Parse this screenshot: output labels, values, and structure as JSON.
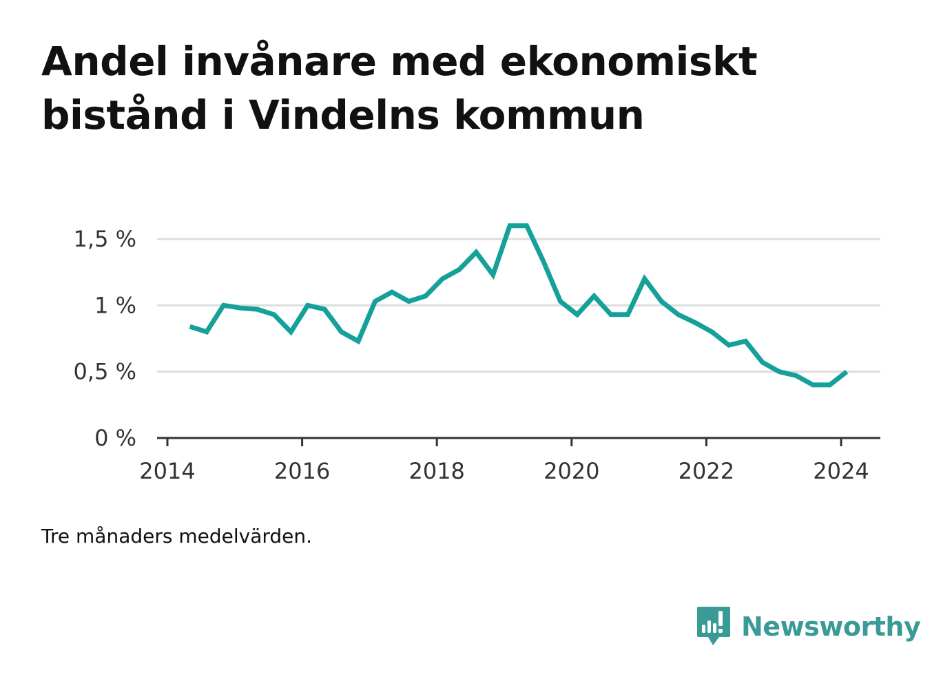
{
  "title": "Andel invånare med ekonomiskt bistånd i Vindelns kommun",
  "note": "Tre månaders medelvärden.",
  "brand": {
    "name": "Newsworthy",
    "icon": "newsworthy-logo-icon",
    "color": "#3a9a96"
  },
  "chart_data": {
    "type": "line",
    "title": "Andel invånare med ekonomiskt bistånd i Vindelns kommun",
    "xlabel": "",
    "ylabel": "",
    "x_ticks": [
      "2014",
      "2016",
      "2018",
      "2020",
      "2022",
      "2024"
    ],
    "y_ticks": [
      "0 %",
      "0,5 %",
      "1 %",
      "1,5 %"
    ],
    "y_tick_values": [
      0,
      0.5,
      1,
      1.5
    ],
    "xlim": [
      2014,
      2024.3
    ],
    "ylim": [
      0,
      1.5
    ],
    "grid": true,
    "line_color": "#16a09a",
    "series": [
      {
        "x": [
          "2014-05",
          "2014-08",
          "2014-11",
          "2015-02",
          "2015-05",
          "2015-08",
          "2015-11",
          "2016-02",
          "2016-05",
          "2016-08",
          "2016-11",
          "2017-02",
          "2017-05",
          "2017-08",
          "2017-11",
          "2018-02",
          "2018-05",
          "2018-08",
          "2018-11",
          "2019-02",
          "2019-05",
          "2019-08",
          "2019-11",
          "2020-02",
          "2020-05",
          "2020-08",
          "2020-11",
          "2021-02",
          "2021-05",
          "2021-08",
          "2021-11",
          "2022-02",
          "2022-05",
          "2022-08",
          "2022-11",
          "2023-02",
          "2023-05",
          "2023-08",
          "2023-11",
          "2024-02"
        ],
        "y": [
          0.84,
          0.8,
          1.0,
          0.98,
          0.97,
          0.93,
          0.8,
          1.0,
          0.97,
          0.8,
          0.73,
          1.03,
          1.1,
          1.03,
          1.07,
          1.2,
          1.27,
          1.4,
          1.23,
          1.6,
          1.6,
          1.33,
          1.03,
          0.93,
          1.07,
          0.93,
          0.93,
          1.2,
          1.03,
          0.93,
          0.87,
          0.8,
          0.7,
          0.73,
          0.57,
          0.5,
          0.47,
          0.4,
          0.4,
          0.5
        ]
      }
    ]
  }
}
